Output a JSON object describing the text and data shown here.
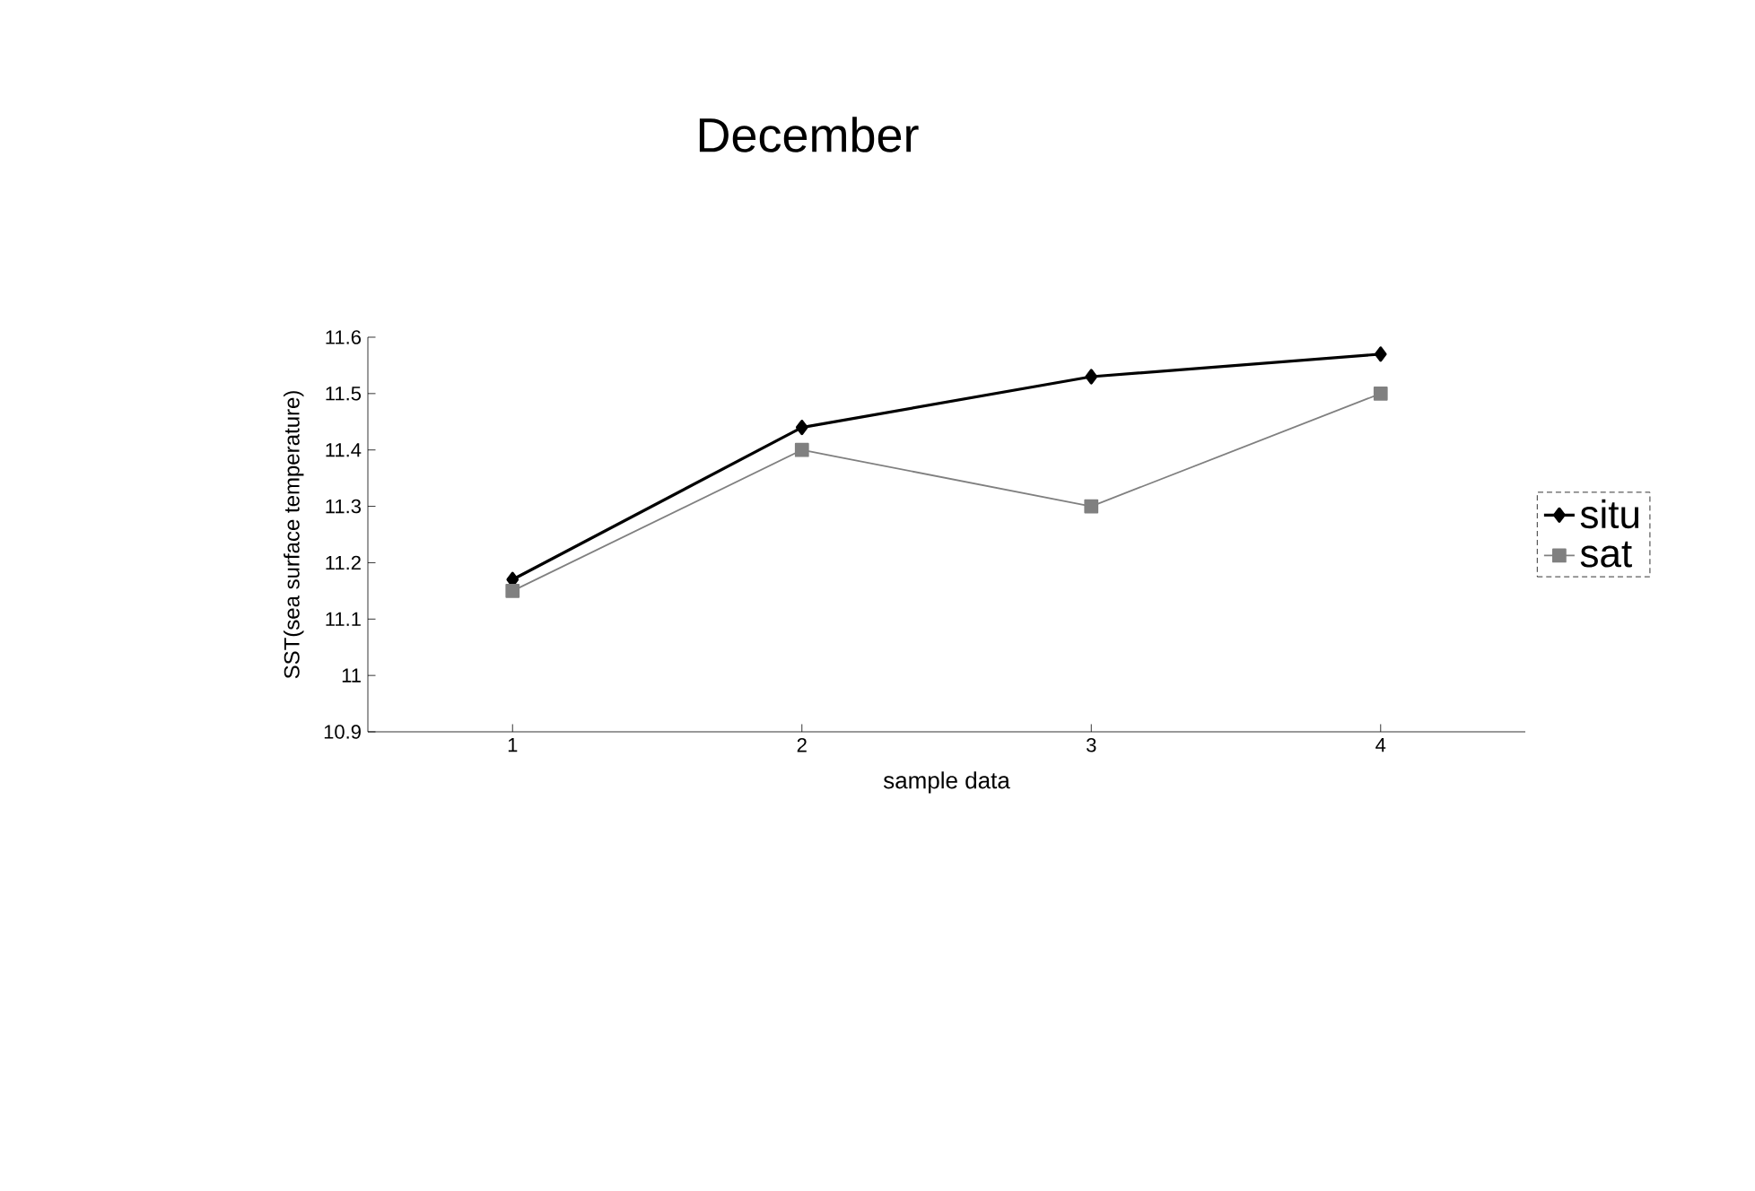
{
  "chart_data": {
    "type": "line",
    "title": "December",
    "xlabel": "sample data",
    "ylabel": "SST(sea surface temperature)",
    "categories": [
      "1",
      "2",
      "3",
      "4"
    ],
    "series": [
      {
        "name": "situ",
        "color": "#000000",
        "marker": "diamond",
        "values": [
          11.17,
          11.44,
          11.53,
          11.57
        ]
      },
      {
        "name": "sat",
        "color": "#808080",
        "marker": "square",
        "values": [
          11.15,
          11.4,
          11.3,
          11.5
        ]
      }
    ],
    "ylim": [
      10.9,
      11.6
    ],
    "yticks": [
      10.9,
      11,
      11.1,
      11.2,
      11.3,
      11.4,
      11.5,
      11.6
    ],
    "grid": false,
    "legend": "right",
    "line_style": "solid"
  }
}
